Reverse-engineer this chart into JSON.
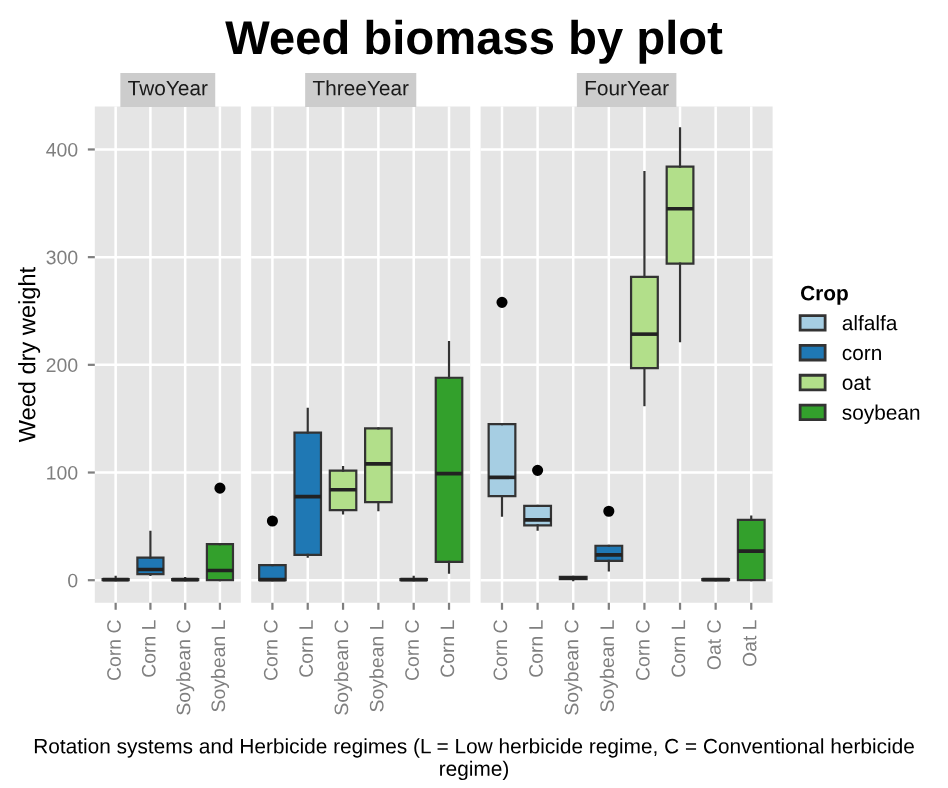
{
  "chart_data": [
    {
      "type": "box",
      "title": "TwoYear",
      "ylabel": "Weed dry weight",
      "annotations": [
        "Weed biomass by plot"
      ],
      "categories": [
        "Corn C",
        "Corn L",
        "Soybean C",
        "Soybean L"
      ],
      "ylim": [
        -21,
        440
      ],
      "yticks": [
        0,
        100,
        200,
        300,
        400
      ],
      "grid": true,
      "series": [
        {
          "color": "#1f78b4",
          "boxes": [
            {
              "low": 0,
              "q1": 0,
              "median": 0.5,
              "q3": 1,
              "high": 3
            },
            {
              "low": 5,
              "q1": 5.6,
              "median": 10,
              "q3": 21,
              "high": 45
            },
            null,
            null
          ]
        },
        {
          "color": "#33a02c",
          "boxes": [
            null,
            null,
            {
              "low": 0,
              "q1": 0,
              "median": 0.5,
              "q3": 1,
              "high": 2
            },
            {
              "low": 0,
              "q1": 0,
              "median": 9,
              "q3": 33.5,
              "high": 33.5,
              "outliers": [
                85.5
              ]
            }
          ]
        }
      ]
    },
    {
      "type": "box",
      "title": "ThreeYear",
      "xlabel": "Rotation systems and Herbicide regimes (L = Low herbicide regime, C = Conventional herbicide regime)",
      "categories": [
        "Corn C",
        "Corn L",
        "Soybean C",
        "Soybean L",
        "Corn C",
        "Corn L"
      ],
      "ylim": [
        -21,
        440
      ],
      "yticks": [
        0,
        100,
        200,
        300,
        400
      ],
      "grid": true,
      "tick_labels": "x",
      "series": [
        {
          "color": "#1f78b4",
          "boxes": [
            {
              "low": 0,
              "q1": 0,
              "median": 0.5,
              "q3": 14,
              "high": 14,
              "outliers": [
                55
              ]
            },
            {
              "low": 22,
              "q1": 23.5,
              "median": 77.6,
              "q3": 137,
              "high": 159
            },
            null,
            null,
            null,
            null
          ]
        },
        {
          "color": "#b2df8a",
          "boxes": [
            null,
            null,
            {
              "low": 62,
              "q1": 65,
              "median": 84,
              "q3": 101.7,
              "high": 105
            },
            {
              "low": 65,
              "q1": 72.6,
              "median": 108,
              "q3": 141,
              "high": 141
            },
            null,
            null
          ]
        },
        {
          "color": "#33a02c",
          "boxes": [
            null,
            null,
            null,
            null,
            {
              "low": 0,
              "q1": 0,
              "median": 0.5,
              "q3": 1,
              "high": 3
            },
            {
              "low": 7,
              "q1": 17,
              "median": 99,
              "q3": 188,
              "high": 221
            }
          ]
        }
      ]
    },
    {
      "type": "box",
      "title": "FourYear",
      "legend_title": "Crop",
      "legend": "right",
      "categories": [
        "Corn C",
        "Corn L",
        "Soybean C",
        "Soybean L",
        "Corn C",
        "Corn L",
        "Oat C",
        "Oat L"
      ],
      "ylim": [
        -21,
        440
      ],
      "yticks": [
        0,
        100,
        200,
        300,
        400
      ],
      "grid": true,
      "tick_labels": "x",
      "series": [
        {
          "name": "alfalfa",
          "color": "#a6cee3",
          "boxes": [
            {
              "low": 60,
              "q1": 78,
              "median": 95.5,
              "q3": 145,
              "high": 145,
              "outliers": [
                258
              ]
            },
            {
              "low": 47,
              "q1": 51,
              "median": 56,
              "q3": 69,
              "high": 69,
              "outliers": [
                102
              ]
            },
            null,
            null,
            null,
            null,
            null,
            null
          ]
        },
        {
          "name": "corn",
          "color": "#1f78b4",
          "boxes": [
            null,
            null,
            {
              "low": 0,
              "q1": 1,
              "median": 2,
              "q3": 3,
              "high": 3
            },
            {
              "low": 9,
              "q1": 18,
              "median": 23.5,
              "q3": 32,
              "high": 32,
              "outliers": [
                64
              ]
            },
            null,
            null,
            null,
            null
          ]
        },
        {
          "name": "oat",
          "color": "#b2df8a",
          "boxes": [
            null,
            null,
            null,
            null,
            {
              "low": 162.6,
              "q1": 197,
              "median": 228.5,
              "q3": 281.6,
              "high": 379
            },
            {
              "low": 222,
              "q1": 294,
              "median": 345,
              "q3": 384,
              "high": 419.5
            },
            null,
            null
          ]
        },
        {
          "name": "soybean",
          "color": "#33a02c",
          "boxes": [
            null,
            null,
            null,
            null,
            null,
            null,
            {
              "low": 0,
              "q1": 0,
              "median": 0.5,
              "q3": 1,
              "high": 1
            },
            {
              "low": 0,
              "q1": 0,
              "median": 27,
              "q3": 56,
              "high": 59
            }
          ]
        }
      ]
    }
  ]
}
